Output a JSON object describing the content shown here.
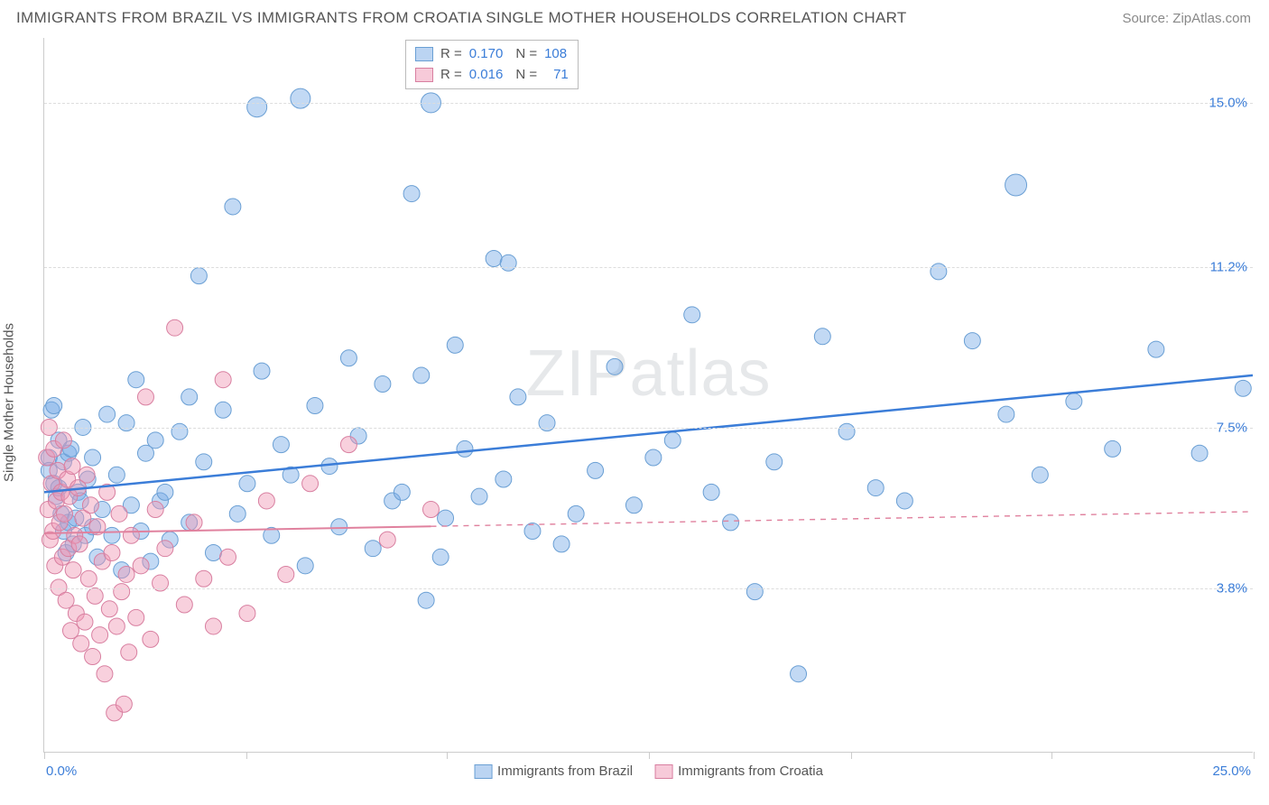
{
  "title": "IMMIGRANTS FROM BRAZIL VS IMMIGRANTS FROM CROATIA SINGLE MOTHER HOUSEHOLDS CORRELATION CHART",
  "source": "Source: ZipAtlas.com",
  "watermark_prefix": "ZIP",
  "watermark_suffix": "atlas",
  "y_axis_title": "Single Mother Households",
  "chart": {
    "type": "scatter",
    "xlim": [
      0,
      25
    ],
    "ylim": [
      0,
      16.5
    ],
    "x_tick_positions": [
      0,
      4.17,
      8.33,
      12.5,
      16.67,
      20.83,
      25
    ],
    "x_labels": {
      "start": "0.0%",
      "end": "25.0%"
    },
    "y_gridlines": [
      {
        "value": 3.8,
        "label": "3.8%"
      },
      {
        "value": 7.5,
        "label": "7.5%"
      },
      {
        "value": 11.2,
        "label": "11.2%"
      },
      {
        "value": 15.0,
        "label": "15.0%"
      }
    ],
    "background_color": "#ffffff",
    "grid_color": "#dddddd",
    "series": [
      {
        "name": "Immigrants from Brazil",
        "legend_label": "Immigrants from Brazil",
        "R": "0.170",
        "N": "108",
        "marker_fill": "rgba(120,170,230,0.45)",
        "marker_stroke": "#6a9fd4",
        "marker_radius": 9,
        "line_color": "#3b7dd8",
        "line_width": 2.5,
        "line_solid_end_x": 25,
        "regression": {
          "x1": 0,
          "y1": 6.0,
          "x2": 25,
          "y2": 8.7
        },
        "points": [
          [
            0.1,
            6.8
          ],
          [
            0.1,
            6.5
          ],
          [
            0.15,
            7.9
          ],
          [
            0.2,
            6.2
          ],
          [
            0.2,
            8.0
          ],
          [
            0.25,
            5.9
          ],
          [
            0.3,
            6.1
          ],
          [
            0.3,
            7.2
          ],
          [
            0.35,
            5.5
          ],
          [
            0.4,
            5.1
          ],
          [
            0.4,
            6.7
          ],
          [
            0.45,
            4.6
          ],
          [
            0.5,
            5.3
          ],
          [
            0.5,
            6.9
          ],
          [
            0.55,
            7.0
          ],
          [
            0.6,
            4.8
          ],
          [
            0.65,
            5.4
          ],
          [
            0.7,
            6.0
          ],
          [
            0.75,
            5.8
          ],
          [
            0.8,
            7.5
          ],
          [
            0.85,
            5.0
          ],
          [
            0.9,
            6.3
          ],
          [
            1.0,
            5.2
          ],
          [
            1.0,
            6.8
          ],
          [
            1.1,
            4.5
          ],
          [
            1.2,
            5.6
          ],
          [
            1.3,
            7.8
          ],
          [
            1.4,
            5.0
          ],
          [
            1.5,
            6.4
          ],
          [
            1.6,
            4.2
          ],
          [
            1.7,
            7.6
          ],
          [
            1.8,
            5.7
          ],
          [
            1.9,
            8.6
          ],
          [
            2.0,
            5.1
          ],
          [
            2.1,
            6.9
          ],
          [
            2.2,
            4.4
          ],
          [
            2.3,
            7.2
          ],
          [
            2.4,
            5.8
          ],
          [
            2.5,
            6.0
          ],
          [
            2.6,
            4.9
          ],
          [
            2.8,
            7.4
          ],
          [
            3.0,
            5.3
          ],
          [
            3.0,
            8.2
          ],
          [
            3.2,
            11.0
          ],
          [
            3.3,
            6.7
          ],
          [
            3.5,
            4.6
          ],
          [
            3.7,
            7.9
          ],
          [
            3.9,
            12.6
          ],
          [
            4.0,
            5.5
          ],
          [
            4.2,
            6.2
          ],
          [
            4.4,
            14.9,
            11
          ],
          [
            4.5,
            8.8
          ],
          [
            4.7,
            5.0
          ],
          [
            4.9,
            7.1
          ],
          [
            5.1,
            6.4
          ],
          [
            5.3,
            15.1,
            11
          ],
          [
            5.4,
            4.3
          ],
          [
            5.6,
            8.0
          ],
          [
            5.9,
            6.6
          ],
          [
            6.1,
            5.2
          ],
          [
            6.3,
            9.1
          ],
          [
            6.5,
            7.3
          ],
          [
            6.8,
            4.7
          ],
          [
            7.0,
            8.5
          ],
          [
            7.2,
            5.8
          ],
          [
            7.4,
            6.0
          ],
          [
            7.6,
            12.9
          ],
          [
            7.8,
            8.7
          ],
          [
            7.9,
            3.5
          ],
          [
            8.0,
            15.0,
            11
          ],
          [
            8.2,
            4.5
          ],
          [
            8.3,
            5.4
          ],
          [
            8.5,
            9.4
          ],
          [
            8.7,
            7.0
          ],
          [
            9.0,
            5.9
          ],
          [
            9.3,
            11.4
          ],
          [
            9.5,
            6.3
          ],
          [
            9.6,
            11.3
          ],
          [
            9.8,
            8.2
          ],
          [
            10.1,
            5.1
          ],
          [
            10.4,
            7.6
          ],
          [
            10.7,
            4.8
          ],
          [
            11.0,
            5.5
          ],
          [
            11.4,
            6.5
          ],
          [
            11.8,
            8.9
          ],
          [
            12.2,
            5.7
          ],
          [
            12.6,
            6.8
          ],
          [
            13.0,
            7.2
          ],
          [
            13.4,
            10.1
          ],
          [
            13.8,
            6.0
          ],
          [
            14.2,
            5.3
          ],
          [
            14.7,
            3.7
          ],
          [
            15.1,
            6.7
          ],
          [
            15.6,
            1.8
          ],
          [
            16.1,
            9.6
          ],
          [
            16.6,
            7.4
          ],
          [
            17.2,
            6.1
          ],
          [
            17.8,
            5.8
          ],
          [
            18.5,
            11.1
          ],
          [
            19.2,
            9.5
          ],
          [
            19.9,
            7.8
          ],
          [
            20.1,
            13.1,
            12
          ],
          [
            20.6,
            6.4
          ],
          [
            21.3,
            8.1
          ],
          [
            22.1,
            7.0
          ],
          [
            23.0,
            9.3
          ],
          [
            23.9,
            6.9
          ],
          [
            24.8,
            8.4
          ]
        ]
      },
      {
        "name": "Immigrants from Croatia",
        "legend_label": "Immigrants from Croatia",
        "R": "0.016",
        "N": "71",
        "marker_fill": "rgba(240,150,180,0.45)",
        "marker_stroke": "#d87fa0",
        "marker_radius": 9,
        "line_color": "#e0819e",
        "line_width": 2,
        "line_solid_end_x": 8,
        "regression": {
          "x1": 0,
          "y1": 5.05,
          "x2": 25,
          "y2": 5.55
        },
        "points": [
          [
            0.05,
            6.8
          ],
          [
            0.08,
            5.6
          ],
          [
            0.1,
            7.5
          ],
          [
            0.12,
            4.9
          ],
          [
            0.15,
            6.2
          ],
          [
            0.18,
            5.1
          ],
          [
            0.2,
            7.0
          ],
          [
            0.22,
            4.3
          ],
          [
            0.25,
            5.8
          ],
          [
            0.28,
            6.5
          ],
          [
            0.3,
            3.8
          ],
          [
            0.32,
            5.3
          ],
          [
            0.35,
            6.0
          ],
          [
            0.38,
            4.5
          ],
          [
            0.4,
            7.2
          ],
          [
            0.42,
            5.5
          ],
          [
            0.45,
            3.5
          ],
          [
            0.48,
            6.3
          ],
          [
            0.5,
            4.7
          ],
          [
            0.52,
            5.9
          ],
          [
            0.55,
            2.8
          ],
          [
            0.58,
            6.6
          ],
          [
            0.6,
            4.2
          ],
          [
            0.63,
            5.0
          ],
          [
            0.66,
            3.2
          ],
          [
            0.7,
            6.1
          ],
          [
            0.73,
            4.8
          ],
          [
            0.76,
            2.5
          ],
          [
            0.8,
            5.4
          ],
          [
            0.84,
            3.0
          ],
          [
            0.88,
            6.4
          ],
          [
            0.92,
            4.0
          ],
          [
            0.96,
            5.7
          ],
          [
            1.0,
            2.2
          ],
          [
            1.05,
            3.6
          ],
          [
            1.1,
            5.2
          ],
          [
            1.15,
            2.7
          ],
          [
            1.2,
            4.4
          ],
          [
            1.25,
            1.8
          ],
          [
            1.3,
            6.0
          ],
          [
            1.35,
            3.3
          ],
          [
            1.4,
            4.6
          ],
          [
            1.45,
            0.9
          ],
          [
            1.5,
            2.9
          ],
          [
            1.55,
            5.5
          ],
          [
            1.6,
            3.7
          ],
          [
            1.65,
            1.1
          ],
          [
            1.7,
            4.1
          ],
          [
            1.75,
            2.3
          ],
          [
            1.8,
            5.0
          ],
          [
            1.9,
            3.1
          ],
          [
            2.0,
            4.3
          ],
          [
            2.1,
            8.2
          ],
          [
            2.2,
            2.6
          ],
          [
            2.3,
            5.6
          ],
          [
            2.4,
            3.9
          ],
          [
            2.5,
            4.7
          ],
          [
            2.7,
            9.8
          ],
          [
            2.9,
            3.4
          ],
          [
            3.1,
            5.3
          ],
          [
            3.3,
            4.0
          ],
          [
            3.5,
            2.9
          ],
          [
            3.7,
            8.6
          ],
          [
            3.8,
            4.5
          ],
          [
            4.2,
            3.2
          ],
          [
            4.6,
            5.8
          ],
          [
            5.0,
            4.1
          ],
          [
            5.5,
            6.2
          ],
          [
            6.3,
            7.1
          ],
          [
            7.1,
            4.9
          ],
          [
            8.0,
            5.6
          ]
        ]
      }
    ]
  },
  "legend_box": {
    "r_label": "R =",
    "n_label": "N ="
  }
}
